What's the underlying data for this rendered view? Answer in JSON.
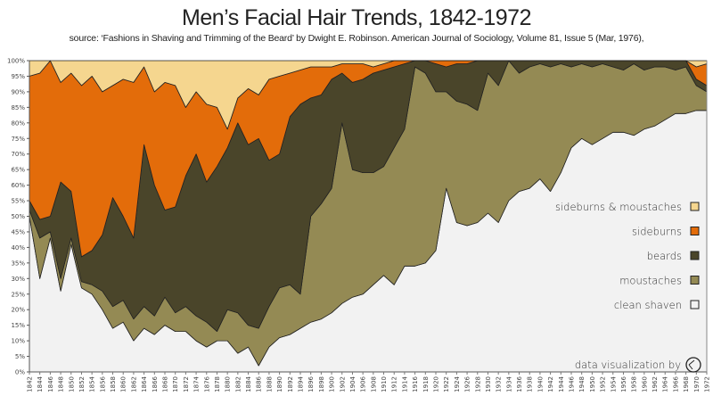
{
  "chart_data": {
    "type": "area",
    "stacked": true,
    "normalized_percent": true,
    "title": "Men’s Facial Hair Trends, 1842-1972",
    "subtitle": "source: ‘Fashions in Shaving and Trimming of the Beard’ by Dwight E. Robinson. American Journal of Sociology, Volume 81, Issue 5 (Mar, 1976),",
    "credit": "data visualization by",
    "xlim": [
      1842,
      1972
    ],
    "ylim": [
      0,
      100
    ],
    "x_tick_step": 2,
    "y_tick_step": 5,
    "y_tick_suffix": "%",
    "legend_placement": "right",
    "x": [
      1842,
      1844,
      1846,
      1848,
      1850,
      1852,
      1854,
      1856,
      1858,
      1860,
      1862,
      1864,
      1866,
      1868,
      1870,
      1872,
      1874,
      1876,
      1878,
      1880,
      1882,
      1884,
      1886,
      1888,
      1890,
      1892,
      1894,
      1896,
      1898,
      1900,
      1902,
      1904,
      1906,
      1908,
      1910,
      1912,
      1914,
      1916,
      1918,
      1920,
      1922,
      1924,
      1926,
      1928,
      1930,
      1932,
      1934,
      1936,
      1938,
      1940,
      1942,
      1944,
      1946,
      1948,
      1950,
      1952,
      1954,
      1956,
      1958,
      1960,
      1962,
      1964,
      1966,
      1968,
      1970,
      1972
    ],
    "series": [
      {
        "name": "clean shaven",
        "color": "#f2f2f2",
        "values": [
          50,
          30,
          43,
          26,
          41,
          27,
          25,
          20,
          14,
          16,
          10,
          14,
          12,
          15,
          13,
          13,
          10,
          8,
          10,
          10,
          6,
          8,
          2,
          8,
          11,
          12,
          14,
          16,
          17,
          19,
          22,
          24,
          25,
          28,
          31,
          28,
          34,
          34,
          35,
          39,
          59,
          48,
          47,
          48,
          51,
          48,
          55,
          58,
          59,
          62,
          58,
          64,
          72,
          75,
          73,
          75,
          77,
          77,
          76,
          78,
          79,
          81,
          83,
          83,
          84,
          84
        ]
      },
      {
        "name": "moustaches",
        "color": "#948a54",
        "values": [
          2,
          13,
          2,
          4,
          2,
          2,
          3,
          6,
          7,
          7,
          7,
          7,
          6,
          9,
          6,
          8,
          8,
          8,
          3,
          10,
          13,
          7,
          12,
          13,
          16,
          16,
          11,
          34,
          37,
          40,
          58,
          41,
          39,
          36,
          35,
          44,
          44,
          64,
          61,
          51,
          31,
          39,
          39,
          36,
          45,
          44,
          45,
          38,
          39,
          37,
          40,
          35,
          26,
          24,
          25,
          24,
          21,
          20,
          23,
          19,
          19,
          17,
          14,
          15,
          8,
          6
        ]
      },
      {
        "name": "beards",
        "color": "#4a452a",
        "values": [
          3,
          6,
          5,
          31,
          15,
          8,
          11,
          18,
          35,
          27,
          26,
          52,
          42,
          28,
          34,
          42,
          52,
          45,
          53,
          52,
          61,
          58,
          61,
          47,
          43,
          54,
          61,
          38,
          35,
          35,
          16,
          28,
          30,
          32,
          31,
          26,
          21,
          2,
          4,
          9,
          8,
          12,
          13,
          16,
          4,
          8,
          0,
          4,
          2,
          1,
          2,
          1,
          2,
          1,
          2,
          1,
          2,
          3,
          1,
          3,
          2,
          2,
          3,
          2,
          2,
          2
        ]
      },
      {
        "name": "sideburns",
        "color": "#e36c0a",
        "values": [
          40,
          47,
          50,
          32,
          38,
          55,
          56,
          46,
          36,
          44,
          50,
          25,
          30,
          41,
          39,
          22,
          20,
          25,
          19,
          6,
          8,
          18,
          14,
          26,
          25,
          14,
          11,
          10,
          9,
          4,
          3,
          6,
          5,
          2,
          2,
          2,
          1,
          0,
          0,
          1,
          2,
          1,
          1,
          0,
          0,
          0,
          0,
          0,
          0,
          0,
          0,
          0,
          0,
          0,
          0,
          0,
          0,
          0,
          0,
          0,
          0,
          0,
          0,
          0,
          4,
          7
        ]
      },
      {
        "name": "sideburns & moustaches",
        "color": "#f5d68f",
        "values": [
          5,
          4,
          0,
          7,
          4,
          8,
          5,
          10,
          8,
          6,
          7,
          2,
          10,
          7,
          8,
          15,
          10,
          14,
          15,
          22,
          12,
          9,
          11,
          6,
          5,
          4,
          3,
          2,
          2,
          2,
          1,
          1,
          1,
          2,
          1,
          0,
          0,
          0,
          0,
          0,
          0,
          0,
          0,
          0,
          0,
          0,
          0,
          0,
          0,
          0,
          0,
          0,
          0,
          0,
          0,
          0,
          0,
          0,
          0,
          0,
          0,
          0,
          0,
          0,
          2,
          1
        ]
      }
    ]
  }
}
